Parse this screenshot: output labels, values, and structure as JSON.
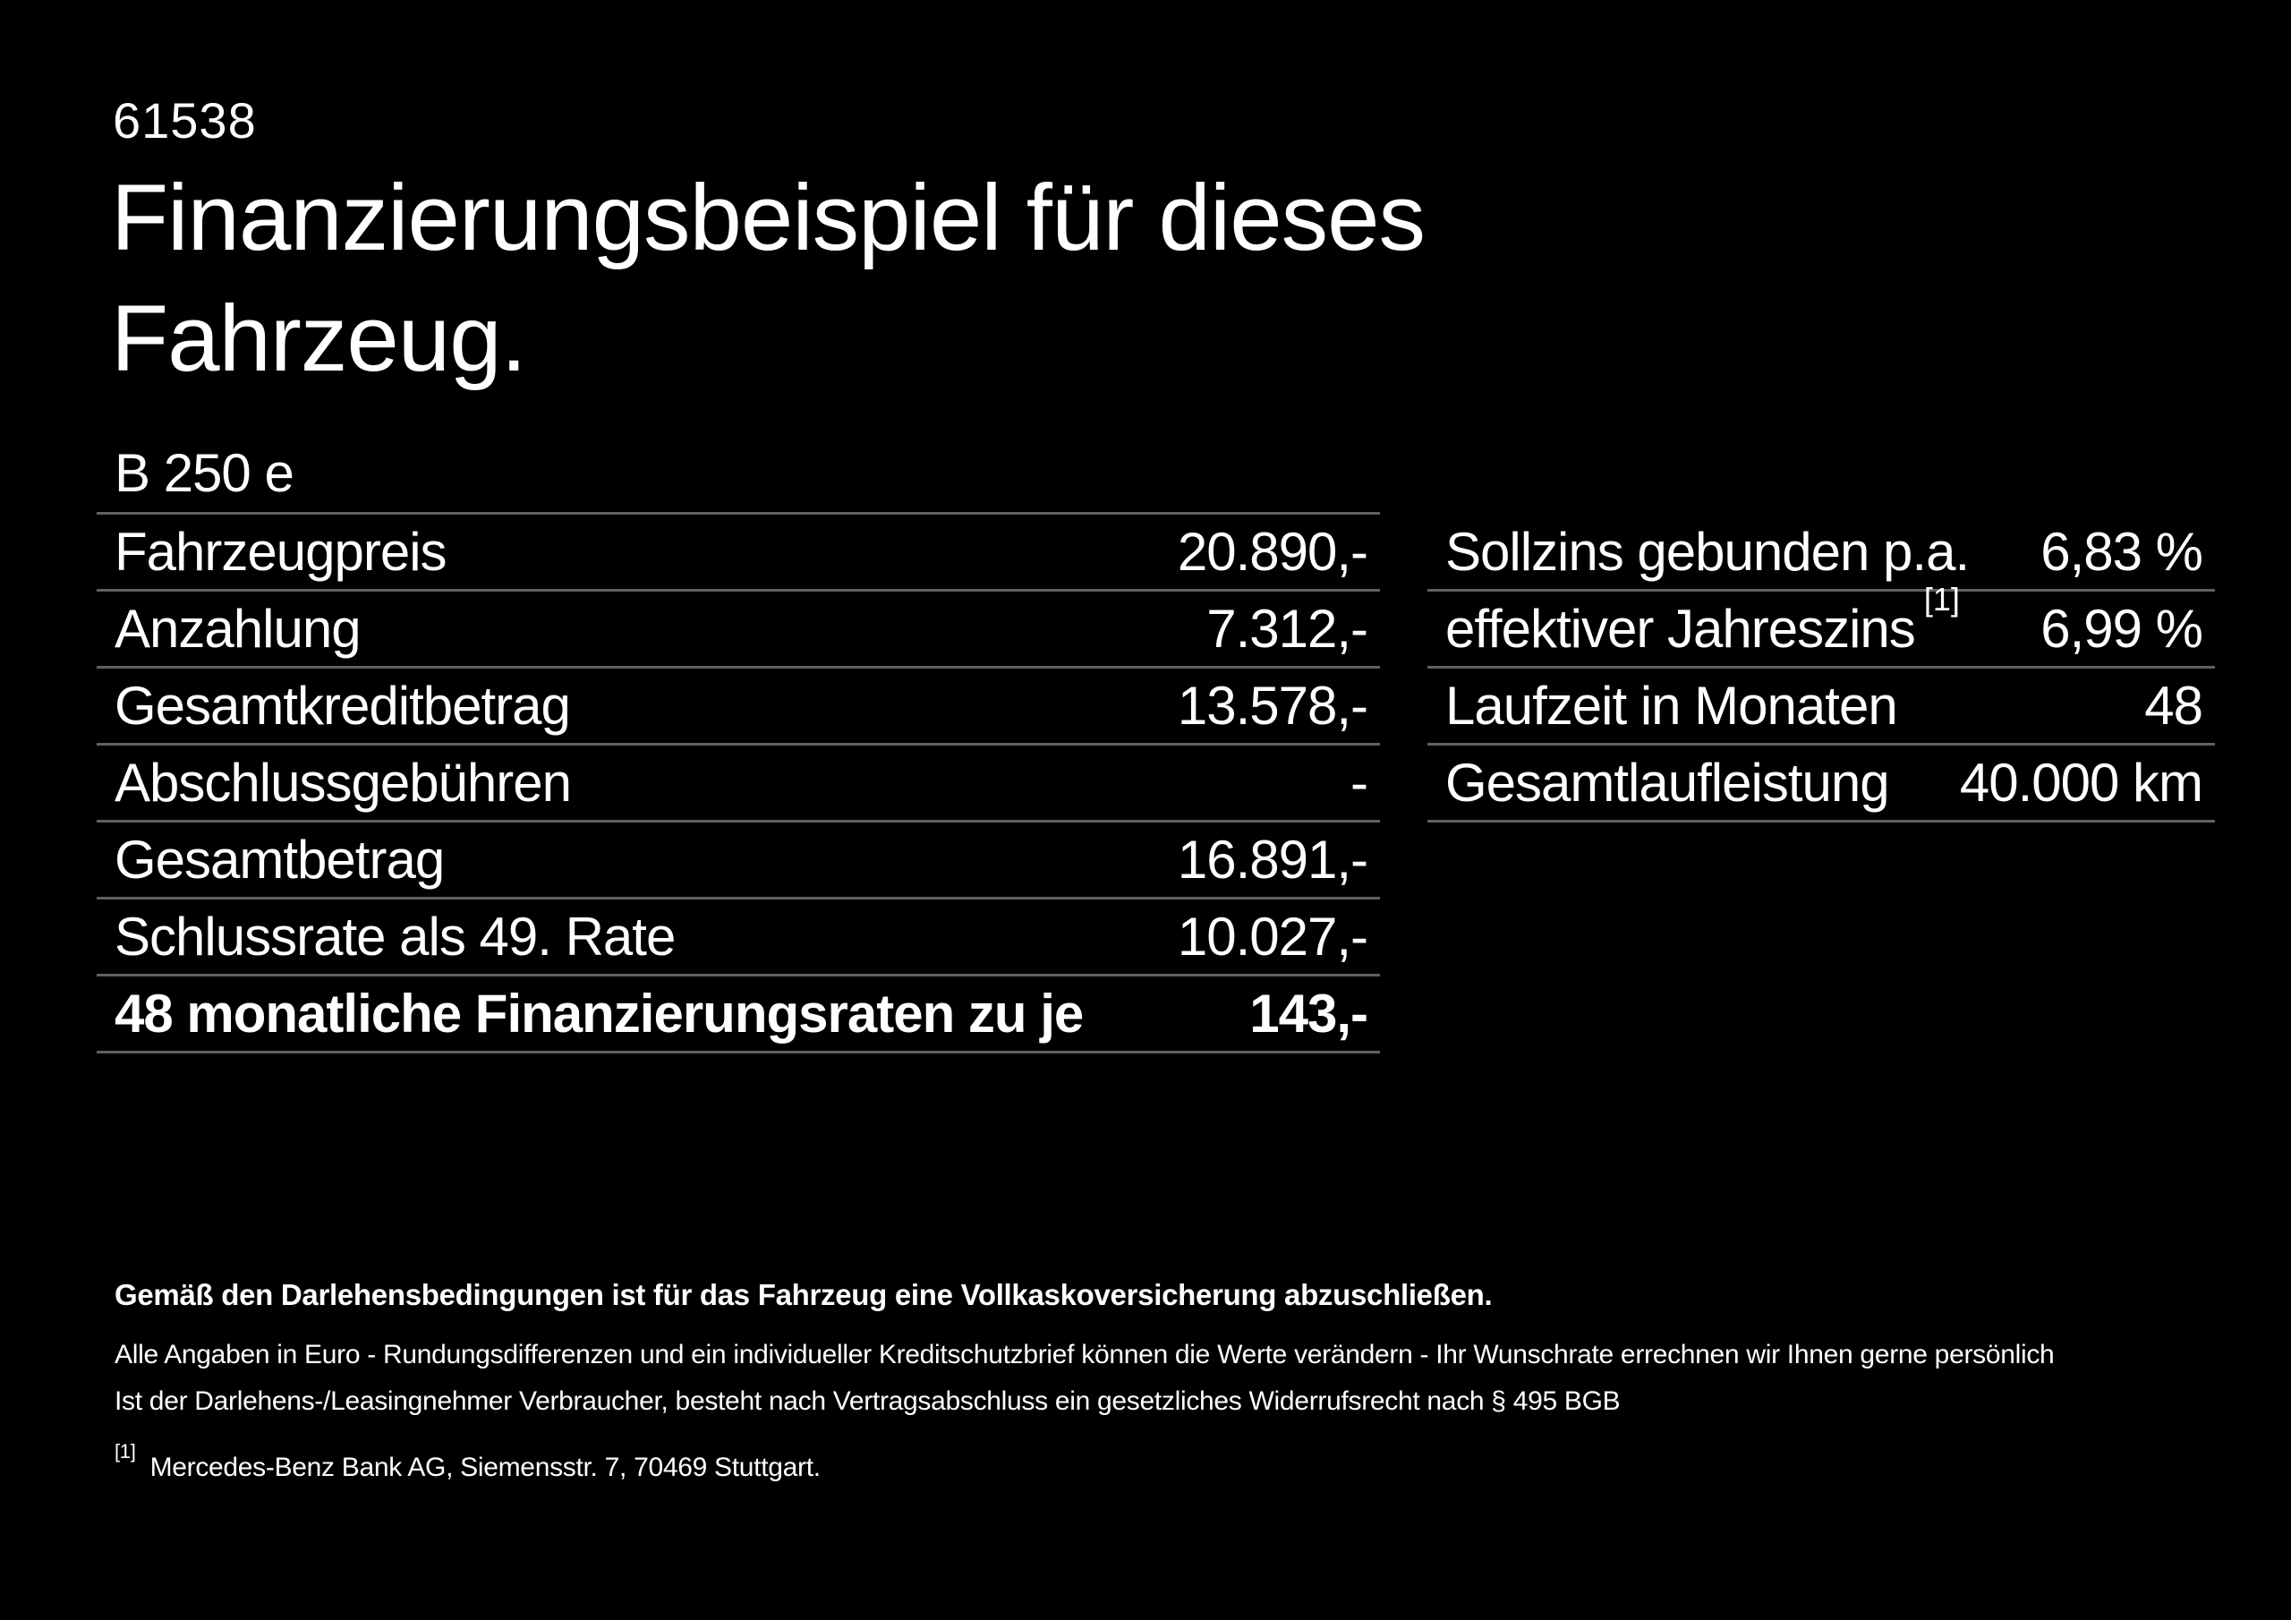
{
  "page": {
    "number": "61538",
    "title_line1": "Finanzierungsbeispiel für dieses",
    "title_line2": "Fahrzeug.",
    "model": "B 250 e"
  },
  "colors": {
    "background": "#000000",
    "text": "#ffffff",
    "divider": "#616161"
  },
  "finance_table": {
    "rows": [
      {
        "label": "Fahrzeugpreis",
        "value": "20.890,-"
      },
      {
        "label": "Anzahlung",
        "value": "7.312,-"
      },
      {
        "label": "Gesamtkreditbetrag",
        "value": "13.578,-"
      },
      {
        "label": "Abschlussgebühren",
        "value": "-"
      },
      {
        "label": "Gesamtbetrag",
        "value": "16.891,-"
      },
      {
        "label": "Schlussrate als 49. Rate",
        "value": "10.027,-"
      },
      {
        "label": "48 monatliche Finanzierungsraten zu je",
        "value": "143,-",
        "bold": true
      }
    ]
  },
  "conditions_table": {
    "rows": [
      {
        "label": "Sollzins gebunden p.a.",
        "sup": "",
        "value": "6,83 %"
      },
      {
        "label": "effektiver Jahreszins",
        "sup": "[1]",
        "value": "6,99 %"
      },
      {
        "label": "Laufzeit in Monaten",
        "sup": "",
        "value": "48"
      },
      {
        "label": "Gesamtlaufleistung",
        "sup": "",
        "value": "40.000 km"
      }
    ]
  },
  "footer": {
    "insurance_note": "Gemäß den Darlehensbedingungen ist für das Fahrzeug eine Vollkaskoversicherung abzuschließen.",
    "note_line1": "Alle Angaben in Euro - Rundungsdifferenzen und ein individueller Kreditschutzbrief können die Werte verändern - Ihr Wunschrate errechnen wir Ihnen gerne persönlich",
    "note_line2": "Ist der Darlehens-/Leasingnehmer Verbraucher, besteht nach Vertragsabschluss ein gesetzliches Widerrufsrecht nach § 495 BGB",
    "footnote_marker": "[1]",
    "footnote_text": "Mercedes-Benz Bank AG, Siemensstr. 7, 70469 Stuttgart."
  }
}
